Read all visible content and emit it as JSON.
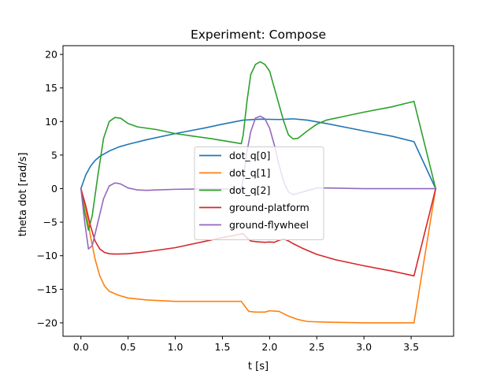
{
  "chart_data": {
    "type": "line",
    "title": "Experiment: Compose",
    "xlabel": "t [s]",
    "ylabel": "theta dot [rad/s]",
    "xlim": [
      -0.19,
      3.95
    ],
    "ylim": [
      -22,
      21.3
    ],
    "xticks": [
      0.0,
      0.5,
      1.0,
      1.5,
      2.0,
      2.5,
      3.0,
      3.5
    ],
    "xtick_labels": [
      "0.0",
      "0.5",
      "1.0",
      "1.5",
      "2.0",
      "2.5",
      "3.0",
      "3.5"
    ],
    "yticks": [
      -20,
      -15,
      -10,
      -5,
      0,
      5,
      10,
      15,
      20
    ],
    "ytick_labels": [
      "−20",
      "−15",
      "−10",
      "−5",
      "0",
      "5",
      "10",
      "15",
      "20"
    ],
    "grid": false,
    "legend_position": "center",
    "series": [
      {
        "name": "dot_q[0]",
        "color": "#1f77b4",
        "x": [
          0,
          0.05,
          0.1,
          0.15,
          0.2,
          0.3,
          0.4,
          0.5,
          0.7,
          1.0,
          1.3,
          1.5,
          1.72,
          1.9,
          2.1,
          2.25,
          2.4,
          2.6,
          3.0,
          3.3,
          3.53,
          3.76
        ],
        "y": [
          0,
          2.0,
          3.3,
          4.2,
          4.8,
          5.6,
          6.2,
          6.6,
          7.3,
          8.2,
          9.0,
          9.6,
          10.2,
          10.35,
          10.3,
          10.4,
          10.2,
          9.7,
          8.6,
          7.8,
          7.0,
          0
        ]
      },
      {
        "name": "dot_q[1]",
        "color": "#ff7f0e",
        "x": [
          0,
          0.05,
          0.1,
          0.15,
          0.2,
          0.25,
          0.3,
          0.4,
          0.5,
          0.7,
          1.0,
          1.3,
          1.7,
          1.72,
          1.78,
          1.85,
          1.95,
          2.0,
          2.1,
          2.2,
          2.3,
          2.4,
          2.6,
          3.0,
          3.5,
          3.53,
          3.76
        ],
        "y": [
          0,
          -3,
          -7,
          -10.5,
          -13,
          -14.5,
          -15.3,
          -15.9,
          -16.3,
          -16.6,
          -16.8,
          -16.8,
          -16.8,
          -17.2,
          -18.3,
          -18.4,
          -18.4,
          -18.2,
          -18.3,
          -19.0,
          -19.5,
          -19.8,
          -19.9,
          -20.0,
          -20.0,
          -20.0,
          0
        ]
      },
      {
        "name": "dot_q[2]",
        "color": "#2ca02c",
        "x": [
          0,
          0.04,
          0.08,
          0.12,
          0.18,
          0.24,
          0.3,
          0.36,
          0.42,
          0.5,
          0.6,
          0.8,
          1.0,
          1.2,
          1.4,
          1.7,
          1.72,
          1.76,
          1.8,
          1.85,
          1.9,
          1.95,
          2.0,
          2.05,
          2.1,
          2.15,
          2.2,
          2.25,
          2.3,
          2.4,
          2.5,
          2.6,
          2.8,
          3.0,
          3.3,
          3.53,
          3.76
        ],
        "y": [
          0,
          -3.5,
          -6.2,
          -4.0,
          2.0,
          7.5,
          10.0,
          10.6,
          10.5,
          9.7,
          9.2,
          8.8,
          8.2,
          7.8,
          7.4,
          6.7,
          8.0,
          13.0,
          17.0,
          18.5,
          18.9,
          18.5,
          17.5,
          15.0,
          12.5,
          10.0,
          8.0,
          7.4,
          7.5,
          8.6,
          9.6,
          10.2,
          10.8,
          11.4,
          12.2,
          13.0,
          0
        ]
      },
      {
        "name": "ground-platform",
        "color": "#d62728",
        "x": [
          0,
          0.05,
          0.1,
          0.15,
          0.2,
          0.25,
          0.3,
          0.35,
          0.4,
          0.5,
          0.7,
          1.0,
          1.3,
          1.5,
          1.72,
          1.75,
          1.8,
          1.85,
          1.9,
          1.95,
          2.0,
          2.05,
          2.1,
          2.15,
          2.2,
          2.25,
          2.35,
          2.5,
          2.7,
          3.0,
          3.3,
          3.53,
          3.76
        ],
        "y": [
          0,
          -2.5,
          -5.5,
          -7.8,
          -9.0,
          -9.5,
          -9.7,
          -9.75,
          -9.75,
          -9.7,
          -9.4,
          -8.8,
          -7.9,
          -7.3,
          -6.7,
          -7.2,
          -7.8,
          -7.9,
          -7.95,
          -8.0,
          -7.95,
          -8.0,
          -7.7,
          -7.5,
          -7.8,
          -8.2,
          -8.9,
          -9.8,
          -10.6,
          -11.5,
          -12.3,
          -13.0,
          0
        ]
      },
      {
        "name": "ground-flywheel",
        "color": "#9467bd",
        "x": [
          0,
          0.04,
          0.08,
          0.12,
          0.18,
          0.24,
          0.3,
          0.36,
          0.42,
          0.5,
          0.6,
          0.7,
          0.8,
          1.0,
          1.3,
          1.5,
          1.7,
          1.72,
          1.76,
          1.8,
          1.85,
          1.9,
          1.95,
          2.0,
          2.05,
          2.1,
          2.15,
          2.2,
          2.25,
          2.3,
          2.4,
          2.5,
          2.6,
          3.0,
          3.5,
          3.76
        ],
        "y": [
          0,
          -5.0,
          -9.0,
          -8.5,
          -5.0,
          -1.5,
          0.4,
          0.85,
          0.7,
          0.1,
          -0.2,
          -0.25,
          -0.2,
          -0.1,
          -0.05,
          -0.05,
          -0.1,
          1.5,
          5.5,
          8.5,
          10.5,
          10.8,
          10.4,
          9.0,
          6.5,
          3.5,
          1.0,
          -0.5,
          -0.9,
          -0.7,
          -0.3,
          0.1,
          0.1,
          0.0,
          0.0,
          0
        ]
      }
    ]
  }
}
